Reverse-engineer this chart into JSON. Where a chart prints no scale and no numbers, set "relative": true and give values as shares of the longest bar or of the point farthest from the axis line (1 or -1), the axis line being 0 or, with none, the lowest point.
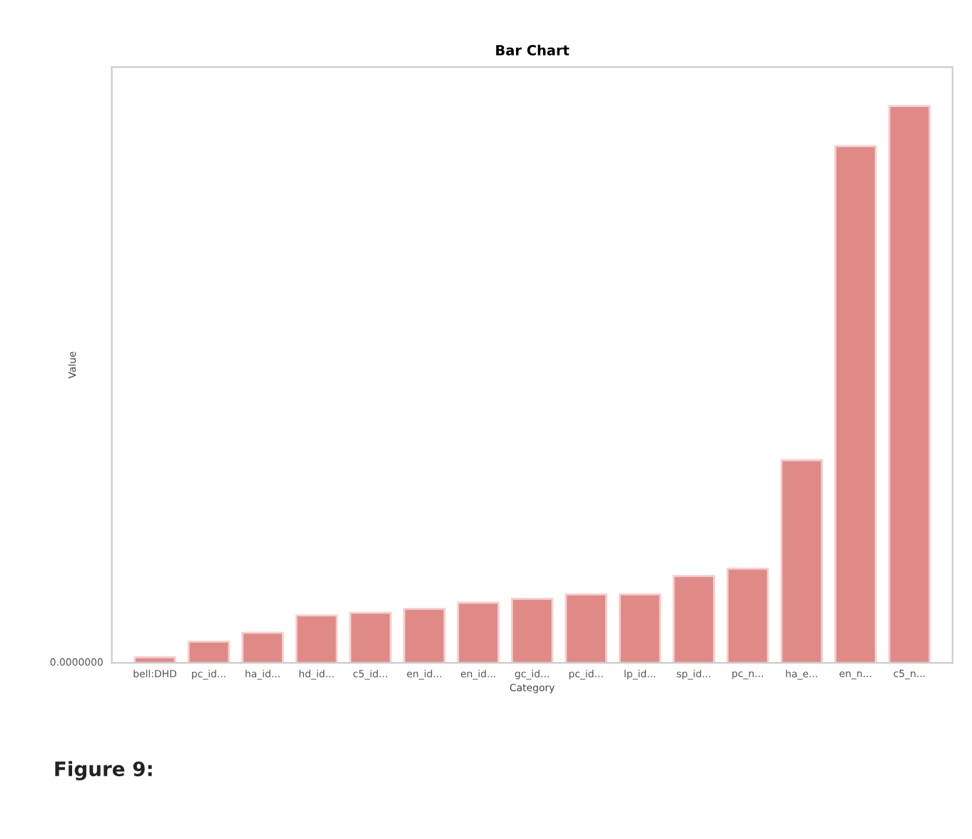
{
  "chart_data": {
    "type": "bar",
    "title": "Bar Chart",
    "xlabel": "Category",
    "ylabel": "Value",
    "relative": true,
    "categories": [
      "bell:DHD",
      "pc_id...",
      "ha_id...",
      "hd_id...",
      "c5_id...",
      "en_id...",
      "en_id...",
      "gc_id...",
      "pc_id...",
      "lp_id...",
      "sp_id...",
      "pc_n...",
      "ha_e...",
      "en_n...",
      "c5_n..."
    ],
    "values": [
      0.01,
      0.038,
      0.054,
      0.085,
      0.09,
      0.097,
      0.108,
      0.115,
      0.123,
      0.123,
      0.156,
      0.169,
      0.364,
      0.928,
      1
    ],
    "color": "#e08a88",
    "grid": false,
    "legend": false,
    "annotations": [
      "0.0000000",
      "Figure 9:"
    ]
  }
}
